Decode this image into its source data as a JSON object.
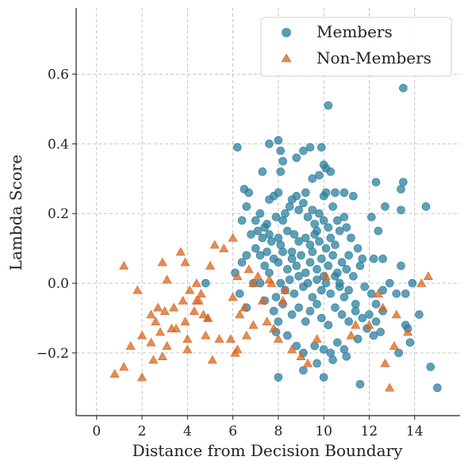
{
  "chart_data": {
    "type": "scatter",
    "title": "",
    "xlabel": "Distance from Decision Boundary",
    "ylabel": "Lambda Score",
    "xlim": [
      -0.9,
      16.0
    ],
    "ylim": [
      -0.38,
      0.79
    ],
    "xticks": [
      0,
      2,
      4,
      6,
      8,
      10,
      12,
      14
    ],
    "yticks": [
      -0.2,
      0.0,
      0.2,
      0.4,
      0.6
    ],
    "ytick_labels": [
      "−0.2",
      "0.0",
      "0.2",
      "0.4",
      "0.6"
    ],
    "grid": true,
    "legend_position": "top-right",
    "series": [
      {
        "name": "Members",
        "marker": "circle",
        "color": "#2b7f9e",
        "points": [
          [
            8.0,
            0.41
          ],
          [
            7.6,
            0.4
          ],
          [
            8.1,
            0.38
          ],
          [
            8.2,
            0.35
          ],
          [
            8.1,
            0.32
          ],
          [
            9.1,
            0.38
          ],
          [
            9.4,
            0.39
          ],
          [
            9.9,
            0.39
          ],
          [
            10.2,
            0.51
          ],
          [
            13.5,
            0.56
          ],
          [
            7.3,
            0.32
          ],
          [
            8.8,
            0.36
          ],
          [
            10.1,
            0.33
          ],
          [
            10.0,
            0.34
          ],
          [
            9.5,
            0.3
          ],
          [
            9.8,
            0.31
          ],
          [
            10.3,
            0.32
          ],
          [
            6.2,
            0.39
          ],
          [
            6.5,
            0.27
          ],
          [
            6.7,
            0.26
          ],
          [
            10.5,
            0.26
          ],
          [
            10.0,
            0.25
          ],
          [
            10.1,
            0.26
          ],
          [
            10.9,
            0.26
          ],
          [
            11.3,
            0.25
          ],
          [
            12.3,
            0.29
          ],
          [
            13.4,
            0.27
          ],
          [
            13.5,
            0.29
          ],
          [
            14.5,
            0.22
          ],
          [
            12.7,
            0.22
          ],
          [
            12.1,
            0.19
          ],
          [
            13.4,
            0.21
          ],
          [
            6.4,
            0.18
          ],
          [
            6.6,
            0.22
          ],
          [
            7.0,
            0.18
          ],
          [
            7.2,
            0.2
          ],
          [
            7.4,
            0.16
          ],
          [
            7.5,
            0.17
          ],
          [
            7.6,
            0.24
          ],
          [
            7.8,
            0.25
          ],
          [
            7.9,
            0.19
          ],
          [
            8.0,
            0.26
          ],
          [
            8.2,
            0.18
          ],
          [
            8.3,
            0.2
          ],
          [
            8.5,
            0.22
          ],
          [
            8.6,
            0.24
          ],
          [
            8.8,
            0.25
          ],
          [
            8.9,
            0.21
          ],
          [
            9.1,
            0.23
          ],
          [
            9.2,
            0.26
          ],
          [
            9.3,
            0.19
          ],
          [
            9.5,
            0.21
          ],
          [
            9.6,
            0.17
          ],
          [
            9.7,
            0.15
          ],
          [
            9.8,
            0.2
          ],
          [
            10.0,
            0.18
          ],
          [
            10.2,
            0.16
          ],
          [
            10.4,
            0.22
          ],
          [
            10.6,
            0.18
          ],
          [
            10.7,
            0.15
          ],
          [
            10.9,
            0.19
          ],
          [
            11.0,
            0.16
          ],
          [
            11.2,
            0.13
          ],
          [
            6.8,
            0.14
          ],
          [
            7.1,
            0.15
          ],
          [
            7.3,
            0.13
          ],
          [
            7.6,
            0.14
          ],
          [
            7.7,
            0.12
          ],
          [
            8.0,
            0.13
          ],
          [
            8.1,
            0.11
          ],
          [
            8.4,
            0.15
          ],
          [
            8.7,
            0.14
          ],
          [
            8.9,
            0.12
          ],
          [
            9.2,
            0.13
          ],
          [
            9.4,
            0.11
          ],
          [
            9.6,
            0.14
          ],
          [
            9.8,
            0.12
          ],
          [
            10.1,
            0.1
          ],
          [
            10.3,
            0.13
          ],
          [
            10.5,
            0.11
          ],
          [
            11.5,
            0.1
          ],
          [
            11.7,
            0.07
          ],
          [
            12.2,
            0.07
          ],
          [
            12.4,
            0.15
          ],
          [
            12.6,
            0.07
          ],
          [
            13.4,
            0.05
          ],
          [
            6.1,
            0.03
          ],
          [
            6.4,
            0.06
          ],
          [
            6.6,
            0.08
          ],
          [
            7.0,
            0.1
          ],
          [
            7.2,
            0.08
          ],
          [
            7.4,
            0.05
          ],
          [
            7.5,
            0.09
          ],
          [
            7.8,
            0.07
          ],
          [
            8.0,
            0.06
          ],
          [
            8.2,
            0.09
          ],
          [
            8.4,
            0.04
          ],
          [
            8.6,
            0.07
          ],
          [
            8.8,
            0.05
          ],
          [
            9.0,
            0.08
          ],
          [
            9.2,
            0.03
          ],
          [
            9.4,
            0.06
          ],
          [
            9.5,
            0.09
          ],
          [
            9.7,
            0.04
          ],
          [
            9.9,
            0.07
          ],
          [
            10.0,
            0.02
          ],
          [
            10.2,
            0.05
          ],
          [
            10.4,
            0.08
          ],
          [
            10.6,
            0.03
          ],
          [
            10.8,
            0.06
          ],
          [
            11.0,
            0.04
          ],
          [
            11.1,
            0.08
          ],
          [
            11.3,
            0.02
          ],
          [
            11.6,
            0.05
          ],
          [
            4.8,
            0.0
          ],
          [
            6.3,
            -0.03
          ],
          [
            6.6,
            -0.07
          ],
          [
            6.9,
            0.0
          ],
          [
            7.2,
            0.0
          ],
          [
            7.4,
            -0.05
          ],
          [
            7.6,
            0.03
          ],
          [
            7.9,
            -0.04
          ],
          [
            8.1,
            0.0
          ],
          [
            8.3,
            -0.02
          ],
          [
            8.5,
            0.01
          ],
          [
            8.7,
            -0.03
          ],
          [
            8.9,
            0.02
          ],
          [
            9.1,
            -0.01
          ],
          [
            9.3,
            0.0
          ],
          [
            9.5,
            -0.04
          ],
          [
            9.7,
            0.01
          ],
          [
            9.9,
            -0.02
          ],
          [
            10.1,
            0.0
          ],
          [
            10.3,
            -0.03
          ],
          [
            10.5,
            0.02
          ],
          [
            10.7,
            -0.01
          ],
          [
            10.9,
            -0.04
          ],
          [
            11.1,
            -0.02
          ],
          [
            11.4,
            -0.06
          ],
          [
            11.8,
            -0.01
          ],
          [
            12.1,
            -0.03
          ],
          [
            12.3,
            -0.06
          ],
          [
            12.6,
            -0.02
          ],
          [
            13.2,
            -0.03
          ],
          [
            13.6,
            -0.03
          ],
          [
            13.9,
            0.0
          ],
          [
            7.8,
            -0.08
          ],
          [
            8.0,
            -0.11
          ],
          [
            8.2,
            -0.06
          ],
          [
            8.6,
            -0.09
          ],
          [
            8.9,
            -0.07
          ],
          [
            9.2,
            -0.11
          ],
          [
            9.4,
            -0.08
          ],
          [
            9.7,
            -0.06
          ],
          [
            9.9,
            -0.1
          ],
          [
            10.2,
            -0.12
          ],
          [
            10.5,
            -0.07
          ],
          [
            10.8,
            -0.09
          ],
          [
            11.1,
            -0.11
          ],
          [
            11.4,
            -0.08
          ],
          [
            11.7,
            -0.1
          ],
          [
            12.0,
            -0.09
          ],
          [
            12.3,
            -0.11
          ],
          [
            12.6,
            -0.08
          ],
          [
            13.6,
            -0.12
          ],
          [
            14.2,
            -0.09
          ],
          [
            7.9,
            -0.14
          ],
          [
            8.4,
            -0.15
          ],
          [
            8.8,
            -0.18
          ],
          [
            9.1,
            -0.2
          ],
          [
            9.6,
            -0.18
          ],
          [
            10.0,
            -0.19
          ],
          [
            10.3,
            -0.2
          ],
          [
            10.6,
            -0.17
          ],
          [
            10.9,
            -0.19
          ],
          [
            11.5,
            -0.16
          ],
          [
            11.9,
            -0.13
          ],
          [
            12.2,
            -0.15
          ],
          [
            12.5,
            -0.14
          ],
          [
            13.3,
            -0.2
          ],
          [
            13.8,
            -0.17
          ],
          [
            8.0,
            -0.27
          ],
          [
            9.1,
            -0.25
          ],
          [
            9.7,
            -0.23
          ],
          [
            10.0,
            -0.27
          ],
          [
            10.4,
            -0.22
          ],
          [
            11.0,
            -0.21
          ],
          [
            11.6,
            -0.29
          ],
          [
            14.7,
            -0.24
          ],
          [
            15.0,
            -0.3
          ],
          [
            13.7,
            -0.13
          ],
          [
            12.9,
            0.0
          ],
          [
            10.7,
            0.0
          ],
          [
            8.6,
            0.09
          ]
        ]
      },
      {
        "name": "Non-Members",
        "marker": "triangle",
        "color": "#d9661f",
        "points": [
          [
            0.8,
            -0.26
          ],
          [
            1.2,
            -0.24
          ],
          [
            1.2,
            0.05
          ],
          [
            1.5,
            -0.18
          ],
          [
            1.8,
            -0.02
          ],
          [
            2.0,
            -0.15
          ],
          [
            2.0,
            -0.27
          ],
          [
            2.4,
            -0.09
          ],
          [
            2.4,
            -0.17
          ],
          [
            2.5,
            -0.22
          ],
          [
            2.6,
            -0.11
          ],
          [
            2.7,
            -0.07
          ],
          [
            2.8,
            -0.14
          ],
          [
            2.9,
            -0.21
          ],
          [
            2.9,
            0.06
          ],
          [
            3.0,
            -0.08
          ],
          [
            3.1,
            -0.18
          ],
          [
            3.1,
            0.01
          ],
          [
            3.3,
            -0.13
          ],
          [
            3.4,
            -0.07
          ],
          [
            3.7,
            0.09
          ],
          [
            3.8,
            -0.05
          ],
          [
            3.9,
            -0.11
          ],
          [
            3.9,
            0.06
          ],
          [
            4.0,
            -0.16
          ],
          [
            4.0,
            -0.19
          ],
          [
            4.1,
            -0.02
          ],
          [
            4.3,
            -0.08
          ],
          [
            4.4,
            0.0
          ],
          [
            4.5,
            -0.05
          ],
          [
            4.6,
            -0.03
          ],
          [
            4.7,
            -0.09
          ],
          [
            4.8,
            -0.15
          ],
          [
            4.9,
            -0.1
          ],
          [
            5.1,
            -0.22
          ],
          [
            5.2,
            0.11
          ],
          [
            5.4,
            -0.16
          ],
          [
            5.6,
            0.1
          ],
          [
            5.9,
            -0.16
          ],
          [
            6.0,
            0.13
          ],
          [
            6.1,
            -0.2
          ],
          [
            6.2,
            -0.19
          ],
          [
            6.3,
            -0.09
          ],
          [
            6.5,
            -0.07
          ],
          [
            6.7,
            0.04
          ],
          [
            6.9,
            0.0
          ],
          [
            6.9,
            -0.12
          ],
          [
            7.1,
            0.02
          ],
          [
            7.3,
            -0.05
          ],
          [
            7.5,
            -0.11
          ],
          [
            7.7,
            0.0
          ],
          [
            7.8,
            -0.13
          ],
          [
            8.0,
            -0.16
          ],
          [
            8.3,
            -0.02
          ],
          [
            8.6,
            -0.19
          ],
          [
            9.0,
            -0.21
          ],
          [
            9.3,
            -0.23
          ],
          [
            9.7,
            -0.16
          ],
          [
            10.1,
            0.02
          ],
          [
            11.2,
            -0.15
          ],
          [
            11.4,
            -0.12
          ],
          [
            12.0,
            -0.12
          ],
          [
            12.4,
            -0.03
          ],
          [
            12.7,
            -0.23
          ],
          [
            12.9,
            -0.3
          ],
          [
            13.1,
            -0.18
          ],
          [
            13.2,
            -0.09
          ],
          [
            13.7,
            -0.14
          ],
          [
            14.3,
            0.0
          ],
          [
            14.6,
            0.02
          ],
          [
            4.9,
            -0.1
          ],
          [
            3.5,
            -0.13
          ],
          [
            5.0,
            0.05
          ],
          [
            6.2,
            0.02
          ],
          [
            6.6,
            -0.15
          ],
          [
            7.6,
            0.01
          ],
          [
            4.4,
            -0.05
          ],
          [
            12.6,
            -0.07
          ],
          [
            6.0,
            -0.04
          ],
          [
            8.2,
            -0.05
          ]
        ]
      }
    ]
  }
}
